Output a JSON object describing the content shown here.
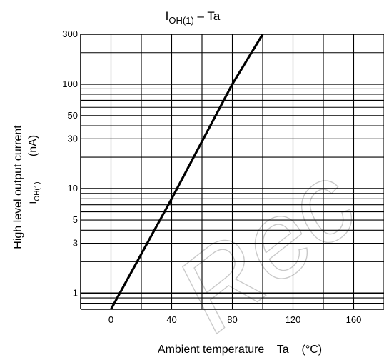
{
  "chart_data": {
    "type": "line",
    "title": "I_OH(1) – Ta",
    "title_main": "I",
    "title_sub": "OH(1)",
    "title_rest": " – Ta",
    "xlabel": "Ambient temperature    Ta    (°C)",
    "ylabel_line1": "High level output current",
    "ylabel_symbol": "I",
    "ylabel_sub": "OH(1)",
    "ylabel_unit": "(nA)",
    "x_scale": "linear",
    "y_scale": "log",
    "xlim": [
      -20,
      180
    ],
    "ylim": [
      0.7,
      300
    ],
    "grid": true,
    "x_ticks": [
      0,
      40,
      80,
      120,
      160
    ],
    "y_tick_labels": [
      1,
      3,
      5,
      10,
      30,
      50,
      100,
      300
    ],
    "series": [
      {
        "x": [
          0,
          40,
          80,
          100
        ],
        "y": [
          0.7,
          8,
          100,
          300
        ]
      }
    ],
    "watermark": "Rec"
  }
}
